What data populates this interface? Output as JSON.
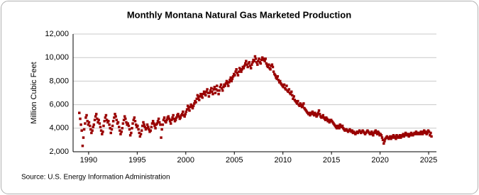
{
  "chart_data": {
    "type": "scatter",
    "title": "Monthly Montana Natural Gas Marketed Production",
    "y_label": "Million Cubic Feet",
    "source": "Source: U.S. Energy Information Administration",
    "color": "#990000",
    "grid": true,
    "xlim": [
      1988.4,
      2025.8
    ],
    "ylim": [
      2000,
      12000
    ],
    "xticks": [
      1990,
      1995,
      2000,
      2005,
      2010,
      2015,
      2020,
      2025
    ],
    "yticks": [
      {
        "value": 2000,
        "label": "2,000"
      },
      {
        "value": 4000,
        "label": "4,000"
      },
      {
        "value": 6000,
        "label": "6,000"
      },
      {
        "value": 8000,
        "label": "8,000"
      },
      {
        "value": 10000,
        "label": "10,000"
      },
      {
        "value": 12000,
        "label": "12,000"
      }
    ],
    "x": [
      1989.04,
      1989.13,
      1989.21,
      1989.29,
      1989.38,
      1989.46,
      1989.54,
      1989.63,
      1989.71,
      1989.79,
      1989.88,
      1989.96,
      1990.04,
      1990.13,
      1990.21,
      1990.29,
      1990.38,
      1990.46,
      1990.54,
      1990.63,
      1990.71,
      1990.79,
      1990.88,
      1990.96,
      1991.04,
      1991.13,
      1991.21,
      1991.29,
      1991.38,
      1991.46,
      1991.54,
      1991.63,
      1991.71,
      1991.79,
      1991.88,
      1991.96,
      1992.04,
      1992.13,
      1992.21,
      1992.29,
      1992.38,
      1992.46,
      1992.54,
      1992.63,
      1992.71,
      1992.79,
      1992.88,
      1992.96,
      1993.04,
      1993.13,
      1993.21,
      1993.29,
      1993.38,
      1993.46,
      1993.54,
      1993.63,
      1993.71,
      1993.79,
      1993.88,
      1993.96,
      1994.04,
      1994.13,
      1994.21,
      1994.29,
      1994.38,
      1994.46,
      1994.54,
      1994.63,
      1994.71,
      1994.79,
      1994.88,
      1994.96,
      1995.04,
      1995.13,
      1995.21,
      1995.29,
      1995.38,
      1995.46,
      1995.54,
      1995.63,
      1995.71,
      1995.79,
      1995.88,
      1995.96,
      1996.04,
      1996.13,
      1996.21,
      1996.29,
      1996.38,
      1996.46,
      1996.54,
      1996.63,
      1996.71,
      1996.79,
      1996.88,
      1996.96,
      1997.04,
      1997.13,
      1997.21,
      1997.29,
      1997.38,
      1997.46,
      1997.54,
      1997.63,
      1997.71,
      1997.79,
      1997.88,
      1997.96,
      1998.04,
      1998.13,
      1998.21,
      1998.29,
      1998.38,
      1998.46,
      1998.54,
      1998.63,
      1998.71,
      1998.79,
      1998.88,
      1998.96,
      1999.04,
      1999.13,
      1999.21,
      1999.29,
      1999.38,
      1999.46,
      1999.54,
      1999.63,
      1999.71,
      1999.79,
      1999.88,
      1999.96,
      2000.04,
      2000.13,
      2000.21,
      2000.29,
      2000.38,
      2000.46,
      2000.54,
      2000.63,
      2000.71,
      2000.79,
      2000.88,
      2000.96,
      2001.04,
      2001.13,
      2001.21,
      2001.29,
      2001.38,
      2001.46,
      2001.54,
      2001.63,
      2001.71,
      2001.79,
      2001.88,
      2001.96,
      2002.04,
      2002.13,
      2002.21,
      2002.29,
      2002.38,
      2002.46,
      2002.54,
      2002.63,
      2002.71,
      2002.79,
      2002.88,
      2002.96,
      2003.04,
      2003.13,
      2003.21,
      2003.29,
      2003.38,
      2003.46,
      2003.54,
      2003.63,
      2003.71,
      2003.79,
      2003.88,
      2003.96,
      2004.04,
      2004.13,
      2004.21,
      2004.29,
      2004.38,
      2004.46,
      2004.54,
      2004.63,
      2004.71,
      2004.79,
      2004.88,
      2004.96,
      2005.04,
      2005.13,
      2005.21,
      2005.29,
      2005.38,
      2005.46,
      2005.54,
      2005.63,
      2005.71,
      2005.79,
      2005.88,
      2005.96,
      2006.04,
      2006.13,
      2006.21,
      2006.29,
      2006.38,
      2006.46,
      2006.54,
      2006.63,
      2006.71,
      2006.79,
      2006.88,
      2006.96,
      2007.04,
      2007.13,
      2007.21,
      2007.29,
      2007.38,
      2007.46,
      2007.54,
      2007.63,
      2007.71,
      2007.79,
      2007.88,
      2007.96,
      2008.04,
      2008.13,
      2008.21,
      2008.29,
      2008.38,
      2008.46,
      2008.54,
      2008.63,
      2008.71,
      2008.79,
      2008.88,
      2008.96,
      2009.04,
      2009.13,
      2009.21,
      2009.29,
      2009.38,
      2009.46,
      2009.54,
      2009.63,
      2009.71,
      2009.79,
      2009.88,
      2009.96,
      2010.04,
      2010.13,
      2010.21,
      2010.29,
      2010.38,
      2010.46,
      2010.54,
      2010.63,
      2010.71,
      2010.79,
      2010.88,
      2010.96,
      2011.04,
      2011.13,
      2011.21,
      2011.29,
      2011.38,
      2011.46,
      2011.54,
      2011.63,
      2011.71,
      2011.79,
      2011.88,
      2011.96,
      2012.04,
      2012.13,
      2012.21,
      2012.29,
      2012.38,
      2012.46,
      2012.54,
      2012.63,
      2012.71,
      2012.79,
      2012.88,
      2012.96,
      2013.04,
      2013.13,
      2013.21,
      2013.29,
      2013.38,
      2013.46,
      2013.54,
      2013.63,
      2013.71,
      2013.79,
      2013.88,
      2013.96,
      2014.04,
      2014.13,
      2014.21,
      2014.29,
      2014.38,
      2014.46,
      2014.54,
      2014.63,
      2014.71,
      2014.79,
      2014.88,
      2014.96,
      2015.04,
      2015.13,
      2015.21,
      2015.29,
      2015.38,
      2015.46,
      2015.54,
      2015.63,
      2015.71,
      2015.79,
      2015.88,
      2015.96,
      2016.04,
      2016.13,
      2016.21,
      2016.29,
      2016.38,
      2016.46,
      2016.54,
      2016.63,
      2016.71,
      2016.79,
      2016.88,
      2016.96,
      2017.04,
      2017.13,
      2017.21,
      2017.29,
      2017.38,
      2017.46,
      2017.54,
      2017.63,
      2017.71,
      2017.79,
      2017.88,
      2017.96,
      2018.04,
      2018.13,
      2018.21,
      2018.29,
      2018.38,
      2018.46,
      2018.54,
      2018.63,
      2018.71,
      2018.79,
      2018.88,
      2018.96,
      2019.04,
      2019.13,
      2019.21,
      2019.29,
      2019.38,
      2019.46,
      2019.54,
      2019.63,
      2019.71,
      2019.79,
      2019.88,
      2019.96,
      2020.04,
      2020.13,
      2020.21,
      2020.29,
      2020.38,
      2020.46,
      2020.54,
      2020.63,
      2020.71,
      2020.79,
      2020.88,
      2020.96,
      2021.04,
      2021.13,
      2021.21,
      2021.29,
      2021.38,
      2021.46,
      2021.54,
      2021.63,
      2021.71,
      2021.79,
      2021.88,
      2021.96,
      2022.04,
      2022.13,
      2022.21,
      2022.29,
      2022.38,
      2022.46,
      2022.54,
      2022.63,
      2022.71,
      2022.79,
      2022.88,
      2022.96,
      2023.04,
      2023.13,
      2023.21,
      2023.29,
      2023.38,
      2023.46,
      2023.54,
      2023.63,
      2023.71,
      2023.79,
      2023.88,
      2023.96,
      2024.04,
      2024.13,
      2024.21,
      2024.29,
      2024.38,
      2024.46,
      2024.54,
      2024.63,
      2024.71,
      2024.79,
      2024.88,
      2024.96,
      2025.04,
      2025.13,
      2025.21,
      2025.29
    ],
    "values": [
      5300,
      4800,
      4300,
      3800,
      2500,
      3200,
      3900,
      4400,
      4900,
      5100,
      4600,
      4300,
      4500,
      4200,
      3900,
      3600,
      3800,
      4100,
      4300,
      4700,
      5000,
      5200,
      4800,
      4500,
      4700,
      4400,
      4100,
      3800,
      3500,
      3700,
      4200,
      4600,
      4900,
      5100,
      4700,
      4500,
      4600,
      4300,
      4000,
      3600,
      3900,
      4200,
      4600,
      4900,
      5200,
      5000,
      4700,
      4400,
      4500,
      4100,
      3800,
      3500,
      3700,
      4000,
      4400,
      4700,
      5000,
      4800,
      4500,
      4300,
      4400,
      4200,
      3900,
      3400,
      3600,
      4000,
      4400,
      4700,
      4900,
      4600,
      4300,
      4100,
      4200,
      3900,
      3600,
      3300,
      3500,
      3800,
      4200,
      4500,
      4300,
      4100,
      3900,
      4000,
      4300,
      4100,
      3900,
      3700,
      3800,
      4100,
      4400,
      4600,
      4400,
      4200,
      4000,
      4300,
      4400,
      4600,
      4800,
      4500,
      4300,
      3200,
      3900,
      4300,
      4700,
      4900,
      4600,
      4500,
      4700,
      4900,
      5000,
      4800,
      4600,
      4400,
      4700,
      4900,
      5100,
      4800,
      4600,
      4700,
      4900,
      5100,
      5200,
      5000,
      4800,
      4900,
      5100,
      5200,
      5400,
      5100,
      5000,
      5200,
      5400,
      5600,
      5900,
      5700,
      5500,
      5800,
      6000,
      5900,
      5700,
      5900,
      6100,
      6300,
      6200,
      6500,
      6800,
      6600,
      6400,
      6700,
      6900,
      6800,
      6600,
      6900,
      7100,
      7000,
      6800,
      7100,
      7300,
      7000,
      6700,
      7000,
      7200,
      7400,
      7100,
      6900,
      7300,
      7500,
      7000,
      7300,
      7600,
      7200,
      6900,
      7200,
      7500,
      7700,
      7400,
      7200,
      7500,
      7700,
      7600,
      7800,
      8000,
      7800,
      7600,
      7900,
      8100,
      8300,
      8000,
      8200,
      8400,
      8600,
      8500,
      8800,
      9000,
      8700,
      8500,
      8800,
      9100,
      9000,
      8800,
      9000,
      9200,
      9100,
      9300,
      9500,
      9700,
      9400,
      9200,
      9500,
      9600,
      9300,
      9100,
      9400,
      9600,
      9800,
      9700,
      10100,
      9900,
      9600,
      9400,
      9700,
      9900,
      9600,
      9500,
      9800,
      10000,
      9900,
      9800,
      9700,
      9900,
      9500,
      9300,
      9200,
      9400,
      9100,
      9000,
      9300,
      9400,
      9200,
      8800,
      8600,
      8500,
      8300,
      8200,
      8400,
      8100,
      7900,
      8000,
      7800,
      7700,
      7600,
      7500,
      7700,
      7400,
      7300,
      7600,
      7200,
      7100,
      7300,
      7000,
      6900,
      7100,
      6800,
      6500,
      6700,
      6400,
      6300,
      6200,
      6100,
      6300,
      6000,
      5900,
      6100,
      6000,
      5800,
      5900,
      6100,
      5700,
      5600,
      5500,
      5400,
      5300,
      5200,
      5300,
      5100,
      5200,
      5300,
      5400,
      5200,
      5100,
      5300,
      5200,
      5000,
      5100,
      5300,
      5500,
      5200,
      5000,
      4900,
      5000,
      5100,
      4900,
      4800,
      4700,
      4900,
      4800,
      4600,
      4700,
      4500,
      4600,
      4700,
      4600,
      4500,
      4400,
      4300,
      4200,
      4100,
      4000,
      4200,
      4100,
      4000,
      4300,
      4200,
      4100,
      4200,
      4000,
      3900,
      3800,
      3900,
      3900,
      3800,
      3700,
      3800,
      3900,
      3800,
      3700,
      3800,
      3600,
      3700,
      3600,
      3500,
      3600,
      3700,
      3600,
      3700,
      3800,
      3700,
      3600,
      3700,
      3800,
      3700,
      3600,
      3500,
      3600,
      3700,
      3800,
      3700,
      3600,
      3500,
      3600,
      3700,
      3500,
      3400,
      3600,
      3700,
      3800,
      3600,
      3500,
      3700,
      3600,
      3400,
      3500,
      3400,
      3200,
      3000,
      2700,
      2900,
      3100,
      3200,
      3300,
      3200,
      3100,
      3200,
      3300,
      3100,
      3200,
      3300,
      3400,
      3200,
      3300,
      3100,
      3400,
      3300,
      3200,
      3300,
      3400,
      3200,
      3300,
      3400,
      3500,
      3300,
      3400,
      3600,
      3500,
      3400,
      3500,
      3300,
      3500,
      3400,
      3600,
      3500,
      3400,
      3500,
      3600,
      3500,
      3700,
      3600,
      3500,
      3600,
      3600,
      3500,
      3700,
      3600,
      3500,
      3700,
      3800,
      3600,
      3700,
      3500,
      3600,
      3800,
      3700,
      3400,
      3600,
      3300
    ]
  }
}
